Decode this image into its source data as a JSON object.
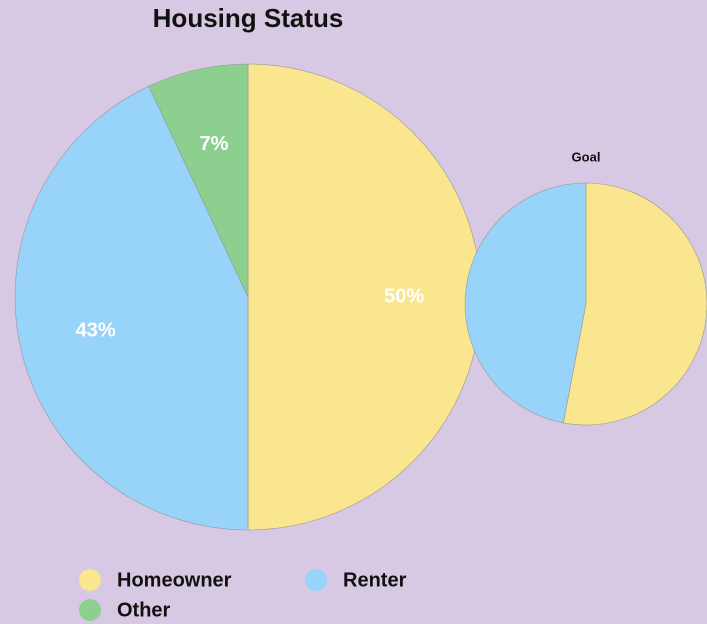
{
  "chart_data": [
    {
      "type": "pie",
      "title": "Housing Status",
      "categories": [
        "Homeowner",
        "Renter",
        "Other"
      ],
      "values": [
        50,
        43,
        7
      ],
      "value_labels": [
        "50%",
        "43%",
        "7%"
      ],
      "colors": [
        "#f9e68f",
        "#98d3fa",
        "#8ccf8f"
      ],
      "legend": "bottom-left"
    },
    {
      "type": "pie",
      "title": "Goal",
      "categories": [
        "Homeowner",
        "Renter"
      ],
      "values": [
        53,
        47
      ],
      "colors": [
        "#f9e68f",
        "#98d3fa"
      ]
    }
  ]
}
